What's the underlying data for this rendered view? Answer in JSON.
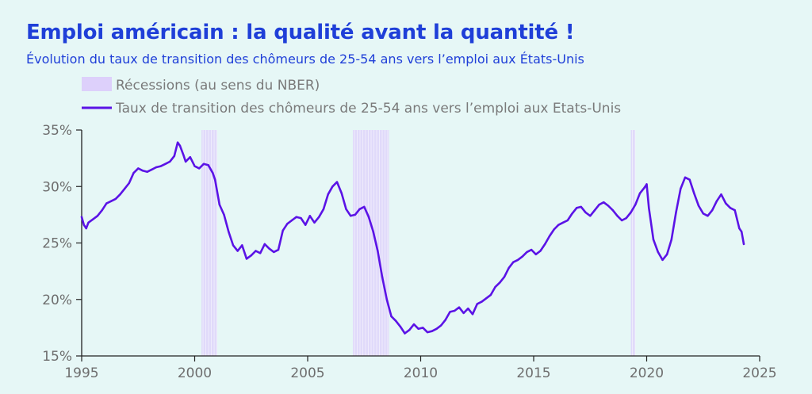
{
  "header": {
    "title": "Emploi américain : la qualité avant la quantité !",
    "subtitle": "Évolution du taux de transition des chômeurs de 25-54 ans vers l’emploi aux États-Unis"
  },
  "chart_data": {
    "type": "line",
    "title": "Emploi américain : la qualité avant la quantité !",
    "subtitle": "Évolution du taux de transition des chômeurs de 25-54 ans vers l’emploi aux États-Unis",
    "xlabel": "",
    "ylabel": "",
    "xlim": [
      1995,
      2025
    ],
    "ylim": [
      15,
      35
    ],
    "x_ticks": [
      1995,
      2000,
      2005,
      2010,
      2015,
      2020,
      2025
    ],
    "y_ticks": [
      {
        "value": 15,
        "label": "15%"
      },
      {
        "value": 20,
        "label": "20%"
      },
      {
        "value": 25,
        "label": "25%"
      },
      {
        "value": 30,
        "label": "30%"
      },
      {
        "value": 35,
        "label": "35%"
      }
    ],
    "grid": false,
    "legend_position": "top-left",
    "colors": {
      "line": "#5b13e6",
      "recession": "#ddd0fb",
      "axis": "#222222"
    },
    "recessions": {
      "name": "Récessions (au sens du NBER)",
      "periods": [
        [
          2000.3,
          2001.0
        ],
        [
          2007.0,
          2008.6
        ],
        [
          2019.3,
          2019.5
        ]
      ]
    },
    "series": [
      {
        "name": "Taux de transition des chômeurs de 25-54 ans vers l’emploi aux Etats-Unis",
        "x": [
          1995.0,
          1995.1,
          1995.2,
          1995.3,
          1995.5,
          1995.7,
          1995.9,
          1996.1,
          1996.3,
          1996.5,
          1996.7,
          1996.9,
          1997.1,
          1997.3,
          1997.5,
          1997.7,
          1997.9,
          1998.1,
          1998.3,
          1998.5,
          1998.7,
          1998.9,
          1999.1,
          1999.25,
          1999.35,
          1999.5,
          1999.6,
          1999.8,
          2000.0,
          2000.2,
          2000.4,
          2000.6,
          2000.8,
          2000.9,
          2001.1,
          2001.3,
          2001.5,
          2001.7,
          2001.9,
          2002.1,
          2002.3,
          2002.5,
          2002.7,
          2002.9,
          2003.1,
          2003.3,
          2003.5,
          2003.7,
          2003.9,
          2004.1,
          2004.3,
          2004.5,
          2004.7,
          2004.9,
          2005.1,
          2005.3,
          2005.5,
          2005.7,
          2005.9,
          2006.1,
          2006.3,
          2006.5,
          2006.7,
          2006.9,
          2007.1,
          2007.3,
          2007.5,
          2007.7,
          2007.9,
          2008.1,
          2008.3,
          2008.5,
          2008.7,
          2008.9,
          2009.1,
          2009.3,
          2009.5,
          2009.7,
          2009.9,
          2010.1,
          2010.3,
          2010.5,
          2010.7,
          2010.9,
          2011.1,
          2011.3,
          2011.5,
          2011.7,
          2011.9,
          2012.1,
          2012.3,
          2012.5,
          2012.7,
          2012.9,
          2013.1,
          2013.3,
          2013.5,
          2013.7,
          2013.9,
          2014.1,
          2014.3,
          2014.5,
          2014.7,
          2014.9,
          2015.1,
          2015.3,
          2015.5,
          2015.7,
          2015.9,
          2016.1,
          2016.3,
          2016.5,
          2016.7,
          2016.9,
          2017.1,
          2017.3,
          2017.5,
          2017.7,
          2017.9,
          2018.1,
          2018.3,
          2018.5,
          2018.7,
          2018.9,
          2019.1,
          2019.3,
          2019.5,
          2019.7,
          2019.9,
          2020.0,
          2020.1,
          2020.3,
          2020.5,
          2020.7,
          2020.9,
          2021.1,
          2021.3,
          2021.5,
          2021.7,
          2021.9,
          2022.1,
          2022.3,
          2022.5,
          2022.7,
          2022.9,
          2023.1,
          2023.3,
          2023.5,
          2023.7,
          2023.9,
          2024.1,
          2024.2,
          2024.3
        ],
        "y": [
          27.3,
          26.6,
          26.3,
          26.8,
          27.1,
          27.4,
          27.9,
          28.5,
          28.7,
          28.9,
          29.3,
          29.8,
          30.3,
          31.2,
          31.6,
          31.4,
          31.3,
          31.5,
          31.7,
          31.8,
          32.0,
          32.2,
          32.7,
          33.9,
          33.6,
          32.8,
          32.2,
          32.6,
          31.8,
          31.6,
          32.0,
          31.9,
          31.2,
          30.6,
          28.4,
          27.5,
          26.0,
          24.8,
          24.3,
          24.8,
          23.6,
          23.9,
          24.3,
          24.1,
          24.9,
          24.5,
          24.2,
          24.4,
          26.1,
          26.7,
          27.0,
          27.3,
          27.2,
          26.6,
          27.4,
          26.8,
          27.3,
          28.0,
          29.3,
          30.0,
          30.4,
          29.4,
          28.0,
          27.4,
          27.5,
          28.0,
          28.2,
          27.3,
          26.0,
          24.3,
          22.0,
          20.0,
          18.5,
          18.1,
          17.6,
          17.0,
          17.3,
          17.8,
          17.4,
          17.5,
          17.1,
          17.2,
          17.4,
          17.7,
          18.2,
          18.9,
          19.0,
          19.3,
          18.8,
          19.2,
          18.7,
          19.6,
          19.8,
          20.1,
          20.4,
          21.1,
          21.5,
          22.0,
          22.8,
          23.3,
          23.5,
          23.8,
          24.2,
          24.4,
          24.0,
          24.3,
          24.9,
          25.6,
          26.2,
          26.6,
          26.8,
          27.0,
          27.6,
          28.1,
          28.2,
          27.7,
          27.4,
          27.9,
          28.4,
          28.6,
          28.3,
          27.9,
          27.4,
          27.0,
          27.2,
          27.7,
          28.4,
          29.4,
          29.9,
          30.2,
          28.1,
          25.3,
          24.2,
          23.5,
          24.0,
          25.3,
          27.7,
          29.8,
          30.8,
          30.6,
          29.4,
          28.3,
          27.6,
          27.4,
          27.9,
          28.7,
          29.3,
          28.5,
          28.1,
          27.9,
          26.3,
          26.0,
          24.9
        ]
      }
    ]
  }
}
